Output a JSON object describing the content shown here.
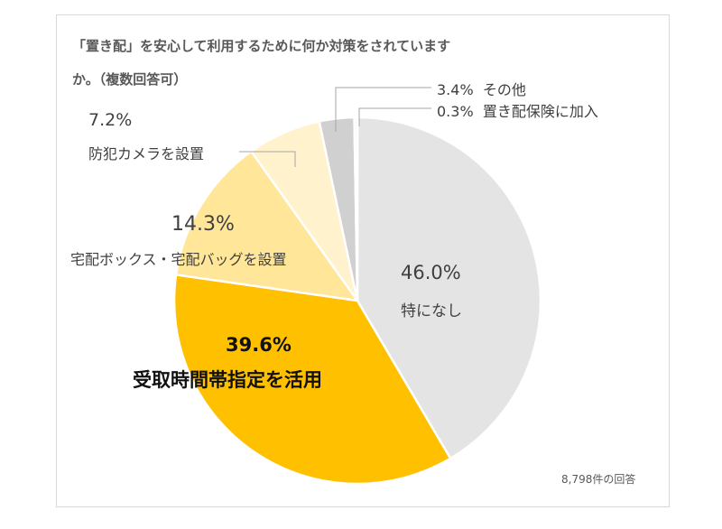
{
  "chart_data": {
    "type": "pie",
    "title_line1": "「置き配」を安心して利用するために何か対策をされています",
    "title_line2": "か。（複数回答可）",
    "note": "8,798件の回答",
    "slices": [
      {
        "label": "特になし",
        "value": 46.0,
        "value_label": "46.0%",
        "color": "#e4e4e4"
      },
      {
        "label": "受取時間帯指定を活用",
        "value": 39.6,
        "value_label": "39.6%",
        "color": "#ffc000"
      },
      {
        "label": "宅配ボックス・宅配バッグを設置",
        "value": 14.3,
        "value_label": "14.3%",
        "color": "#ffe699"
      },
      {
        "label": "防犯カメラを設置",
        "value": 7.2,
        "value_label": "7.2%",
        "color": "#fff2cc"
      },
      {
        "label": "その他",
        "value": 3.4,
        "value_label": "3.4%",
        "color": "#d0d0d0"
      },
      {
        "label": "置き配保険に加入",
        "value": 0.3,
        "value_label": "0.3%",
        "color": "#f5f5f5"
      }
    ]
  }
}
